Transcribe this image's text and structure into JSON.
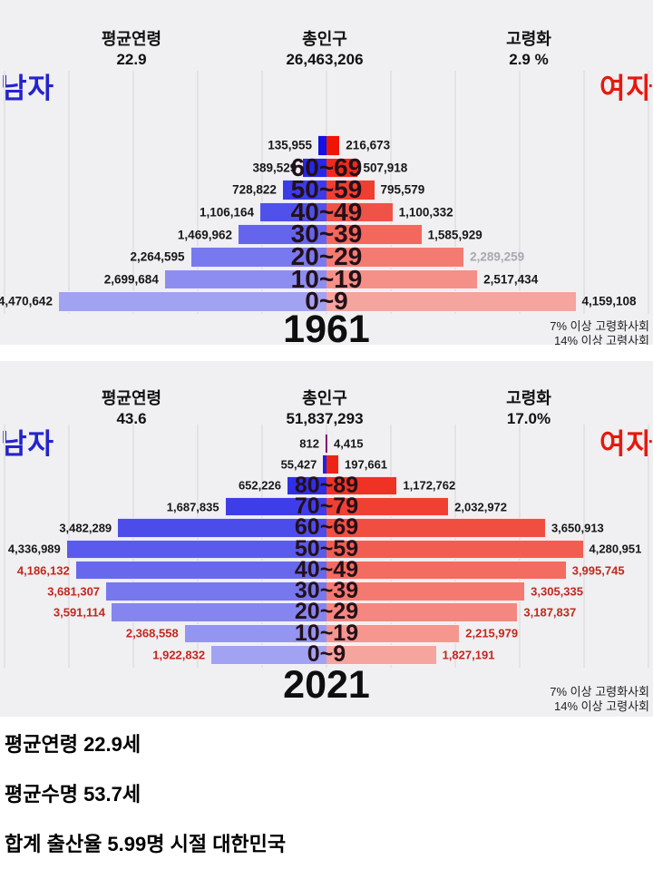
{
  "colors": {
    "chart_bg": "#f0eff1",
    "gridline": "#e3e2e5",
    "male_vivid": "#1212e6",
    "male_light": "#a2a2f2",
    "female_vivid": "#ee1505",
    "female_light": "#f6a49e",
    "male_side_label": "#2424cb",
    "female_side_label": "#e4190e",
    "value_text": "#17171a",
    "value_text_gray": "#a9a9ae",
    "value_text_red": "#c1291c",
    "age_label_text": "#241019",
    "heading_text": "#111111"
  },
  "chart_data": [
    {
      "type": "bar",
      "subtype": "population-pyramid",
      "title": "1961",
      "left_label": "남자",
      "right_label": "여자",
      "stats": [
        {
          "label": "평균연령",
          "value": "22.9"
        },
        {
          "label": "총인구",
          "value": "26,463,206"
        },
        {
          "label": "고령화",
          "value": "2.9 %"
        }
      ],
      "annotations": [
        "7% 이상 고령화사회",
        "14% 이상 고령사회"
      ],
      "axis": {
        "gridline_interval": 1000000,
        "xlim_persons": [
          -5000000,
          5000000
        ],
        "grid": true
      },
      "rows_top_to_bottom": [
        {
          "age": "",
          "male": 135955,
          "female": 216673
        },
        {
          "age": "60~69",
          "male": 389529,
          "female": 507918
        },
        {
          "age": "50~59",
          "male": 728822,
          "female": 795579
        },
        {
          "age": "40~49",
          "male": 1106164,
          "female": 1100332
        },
        {
          "age": "30~39",
          "male": 1469962,
          "female": 1585929
        },
        {
          "age": "20~29",
          "male": 2264595,
          "female": 2289259,
          "female_value_color": "#a9a9ae"
        },
        {
          "age": "10~19",
          "male": 2699684,
          "female": 2517434
        },
        {
          "age": "0~9",
          "male": 4470642,
          "female": 4159108
        }
      ]
    },
    {
      "type": "bar",
      "subtype": "population-pyramid",
      "title": "2021",
      "left_label": "남자",
      "right_label": "여자",
      "stats": [
        {
          "label": "평균연령",
          "value": "43.6"
        },
        {
          "label": "총인구",
          "value": "51,837,293"
        },
        {
          "label": "고령화",
          "value": "17.0%"
        }
      ],
      "annotations": [
        "7% 이상 고령화사회",
        "14% 이상 고령사회"
      ],
      "axis": {
        "gridline_interval": 1000000,
        "xlim_persons": [
          -5000000,
          5000000
        ],
        "grid": true
      },
      "rows_top_to_bottom": [
        {
          "age": "",
          "male": 812,
          "female": 4415
        },
        {
          "age": "",
          "male": 55427,
          "female": 197661
        },
        {
          "age": "80~89",
          "male": 652226,
          "female": 1172762
        },
        {
          "age": "70~79",
          "male": 1687835,
          "female": 2032972
        },
        {
          "age": "60~69",
          "male": 3482289,
          "female": 3650913
        },
        {
          "age": "50~59",
          "male": 4336989,
          "female": 4280951
        },
        {
          "age": "40~49",
          "male": 4186132,
          "female": 3995745,
          "male_value_color": "#c1291c",
          "female_value_color": "#c1291c"
        },
        {
          "age": "30~39",
          "male": 3681307,
          "female": 3305335,
          "male_value_color": "#c1291c",
          "female_value_color": "#c1291c"
        },
        {
          "age": "20~29",
          "male": 3591114,
          "female": 3187837,
          "male_value_color": "#c1291c",
          "female_value_color": "#c1291c"
        },
        {
          "age": "10~19",
          "male": 2368558,
          "female": 2215979,
          "male_value_color": "#c1291c",
          "female_value_color": "#c1291c"
        },
        {
          "age": "0~9",
          "male": 1922832,
          "female": 1827191,
          "male_value_color": "#c1291c",
          "female_value_color": "#c1291c"
        }
      ]
    }
  ],
  "footer": {
    "lines": [
      "평균연령 22.9세",
      "평균수명 53.7세",
      "합계 출산율 5.99명 시절 대한민국"
    ]
  }
}
